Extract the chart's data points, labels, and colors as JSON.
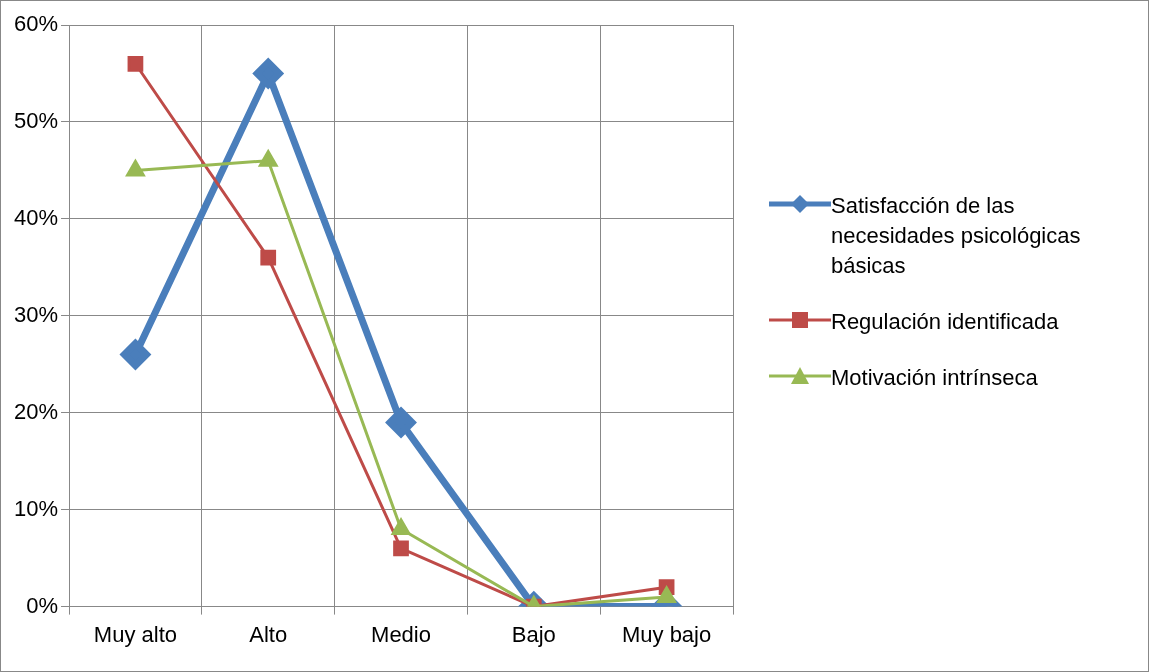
{
  "chart_data": {
    "type": "line",
    "categories": [
      "Muy alto",
      "Alto",
      "Medio",
      "Bajo",
      "Muy bajo"
    ],
    "series": [
      {
        "name": "Satisfacción de las necesidades psicológicas básicas",
        "color": "#4a7ebb",
        "marker": "diamond",
        "values": [
          26,
          55,
          19,
          0,
          0
        ]
      },
      {
        "name": "Regulación identificada",
        "color": "#be4b48",
        "marker": "square",
        "values": [
          56,
          36,
          6,
          0,
          2
        ]
      },
      {
        "name": "Motivación intrínseca",
        "color": "#98b954",
        "marker": "triangle",
        "values": [
          45,
          46,
          8,
          0,
          1
        ]
      }
    ],
    "ylim": [
      0,
      60
    ],
    "yticks": [
      {
        "value": 0,
        "label": "0%"
      },
      {
        "value": 10,
        "label": "10%"
      },
      {
        "value": 20,
        "label": "20%"
      },
      {
        "value": 30,
        "label": "30%"
      },
      {
        "value": 40,
        "label": "40%"
      },
      {
        "value": 50,
        "label": "50%"
      },
      {
        "value": 60,
        "label": "60%"
      }
    ],
    "grid": true,
    "legend": "right"
  }
}
